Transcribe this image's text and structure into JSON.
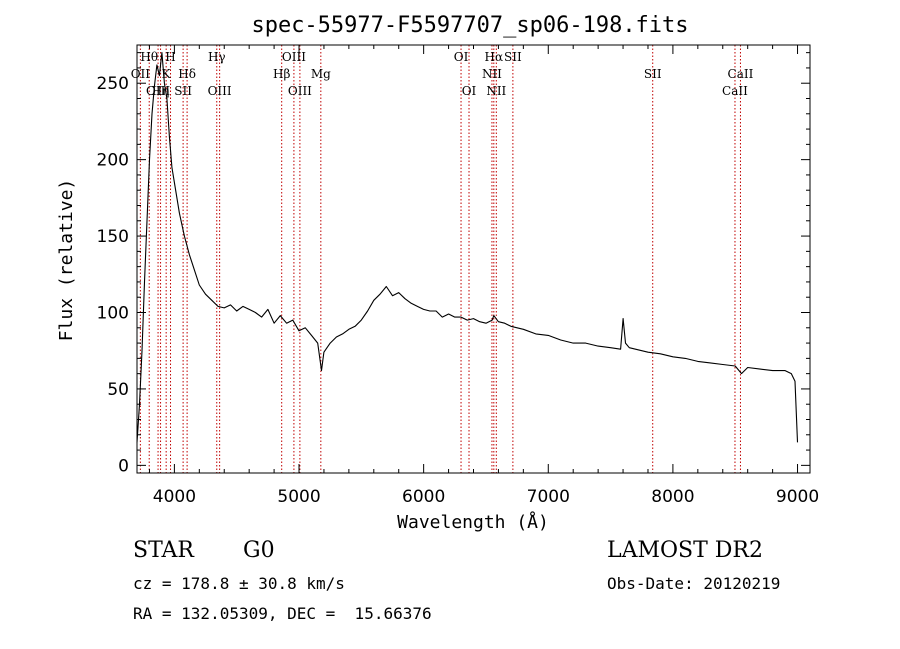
{
  "chart_data": {
    "type": "line",
    "title": "spec-55977-F5597707_sp06-198.fits",
    "xlabel": "Wavelength (Å)",
    "ylabel": "Flux (relative)",
    "xlim": [
      3700,
      9100
    ],
    "ylim": [
      -5,
      275
    ],
    "x_ticks": [
      4000,
      5000,
      6000,
      7000,
      8000,
      9000
    ],
    "y_ticks": [
      0,
      50,
      100,
      150,
      200,
      250
    ],
    "grid": false,
    "line_color": "#000000",
    "marker_color": "#c00000",
    "series": [
      {
        "x": [
          3700,
          3720,
          3740,
          3760,
          3780,
          3800,
          3820,
          3840,
          3860,
          3880,
          3900,
          3920,
          3940,
          3960,
          3980,
          4000,
          4040,
          4080,
          4120,
          4160,
          4200,
          4250,
          4300,
          4350,
          4400,
          4450,
          4500,
          4550,
          4600,
          4650,
          4700,
          4750,
          4800,
          4850,
          4900,
          4950,
          5000,
          5050,
          5100,
          5150,
          5180,
          5200,
          5250,
          5300,
          5350,
          5400,
          5450,
          5500,
          5550,
          5600,
          5650,
          5700,
          5750,
          5800,
          5850,
          5900,
          5950,
          6000,
          6050,
          6100,
          6150,
          6200,
          6250,
          6300,
          6350,
          6400,
          6450,
          6500,
          6550,
          6563,
          6600,
          6650,
          6700,
          6750,
          6800,
          6900,
          7000,
          7100,
          7200,
          7300,
          7400,
          7500,
          7580,
          7600,
          7620,
          7650,
          7700,
          7800,
          7900,
          8000,
          8100,
          8200,
          8300,
          8400,
          8500,
          8550,
          8600,
          8700,
          8800,
          8900,
          8950,
          8980,
          9000
        ],
        "y": [
          15,
          40,
          75,
          120,
          160,
          200,
          230,
          248,
          262,
          255,
          270,
          250,
          240,
          215,
          195,
          185,
          165,
          150,
          138,
          128,
          118,
          112,
          108,
          104,
          103,
          105,
          101,
          104,
          102,
          100,
          97,
          102,
          93,
          98,
          93,
          95,
          88,
          90,
          85,
          80,
          62,
          74,
          80,
          84,
          86,
          89,
          91,
          95,
          101,
          108,
          112,
          117,
          111,
          113,
          109,
          106,
          104,
          102,
          101,
          101,
          97,
          99,
          97,
          97,
          95,
          96,
          94,
          93,
          95,
          98,
          94,
          93,
          91,
          90,
          89,
          86,
          85,
          82,
          80,
          80,
          78,
          77,
          76,
          96,
          80,
          77,
          76,
          74,
          73,
          71,
          70,
          68,
          67,
          66,
          65,
          60,
          64,
          63,
          62,
          62,
          60,
          55,
          15
        ]
      }
    ],
    "line_labels": [
      {
        "text": "OII",
        "x": 3727,
        "row": 2
      },
      {
        "text": "Hθ",
        "x": 3798,
        "row": 1
      },
      {
        "text": "OIII",
        "x": 3869,
        "row": 3
      },
      {
        "text": "Hη",
        "x": 3889,
        "row": 3
      },
      {
        "text": "H",
        "x": 3969,
        "row": 1
      },
      {
        "text": "K",
        "x": 3934,
        "row": 2
      },
      {
        "text": "Hδ",
        "x": 4102,
        "row": 2
      },
      {
        "text": "SII",
        "x": 4070,
        "row": 3
      },
      {
        "text": "Hγ",
        "x": 4340,
        "row": 1
      },
      {
        "text": "OIII",
        "x": 4363,
        "row": 3
      },
      {
        "text": "OIII",
        "x": 4959,
        "row": 1
      },
      {
        "text": "Hβ",
        "x": 4861,
        "row": 2
      },
      {
        "text": "OIII",
        "x": 5007,
        "row": 3
      },
      {
        "text": "Mg",
        "x": 5175,
        "row": 2
      },
      {
        "text": "OI",
        "x": 6300,
        "row": 1
      },
      {
        "text": "OI",
        "x": 6364,
        "row": 3
      },
      {
        "text": "Hα",
        "x": 6563,
        "row": 1
      },
      {
        "text": "SII",
        "x": 6716,
        "row": 1
      },
      {
        "text": "NII",
        "x": 6548,
        "row": 2
      },
      {
        "text": "NII",
        "x": 6583,
        "row": 3
      },
      {
        "text": "SII",
        "x": 7838,
        "row": 2
      },
      {
        "text": "CaII",
        "x": 8542,
        "row": 2
      },
      {
        "text": "CaII",
        "x": 8498,
        "row": 3
      }
    ],
    "line_markers": [
      3727,
      3798,
      3869,
      3889,
      3934,
      3969,
      4070,
      4102,
      4340,
      4363,
      4861,
      4959,
      5007,
      5175,
      6300,
      6364,
      6548,
      6563,
      6583,
      6716,
      7838,
      8498,
      8542
    ]
  },
  "info": {
    "class_label": "STAR",
    "subclass": "G0",
    "survey": "LAMOST DR2",
    "cz_line": "cz = 178.8 ± 30.8 km/s",
    "obs_date_line": "Obs-Date: 20120219",
    "radec_line": "RA = 132.05309, DEC =  15.66376"
  }
}
